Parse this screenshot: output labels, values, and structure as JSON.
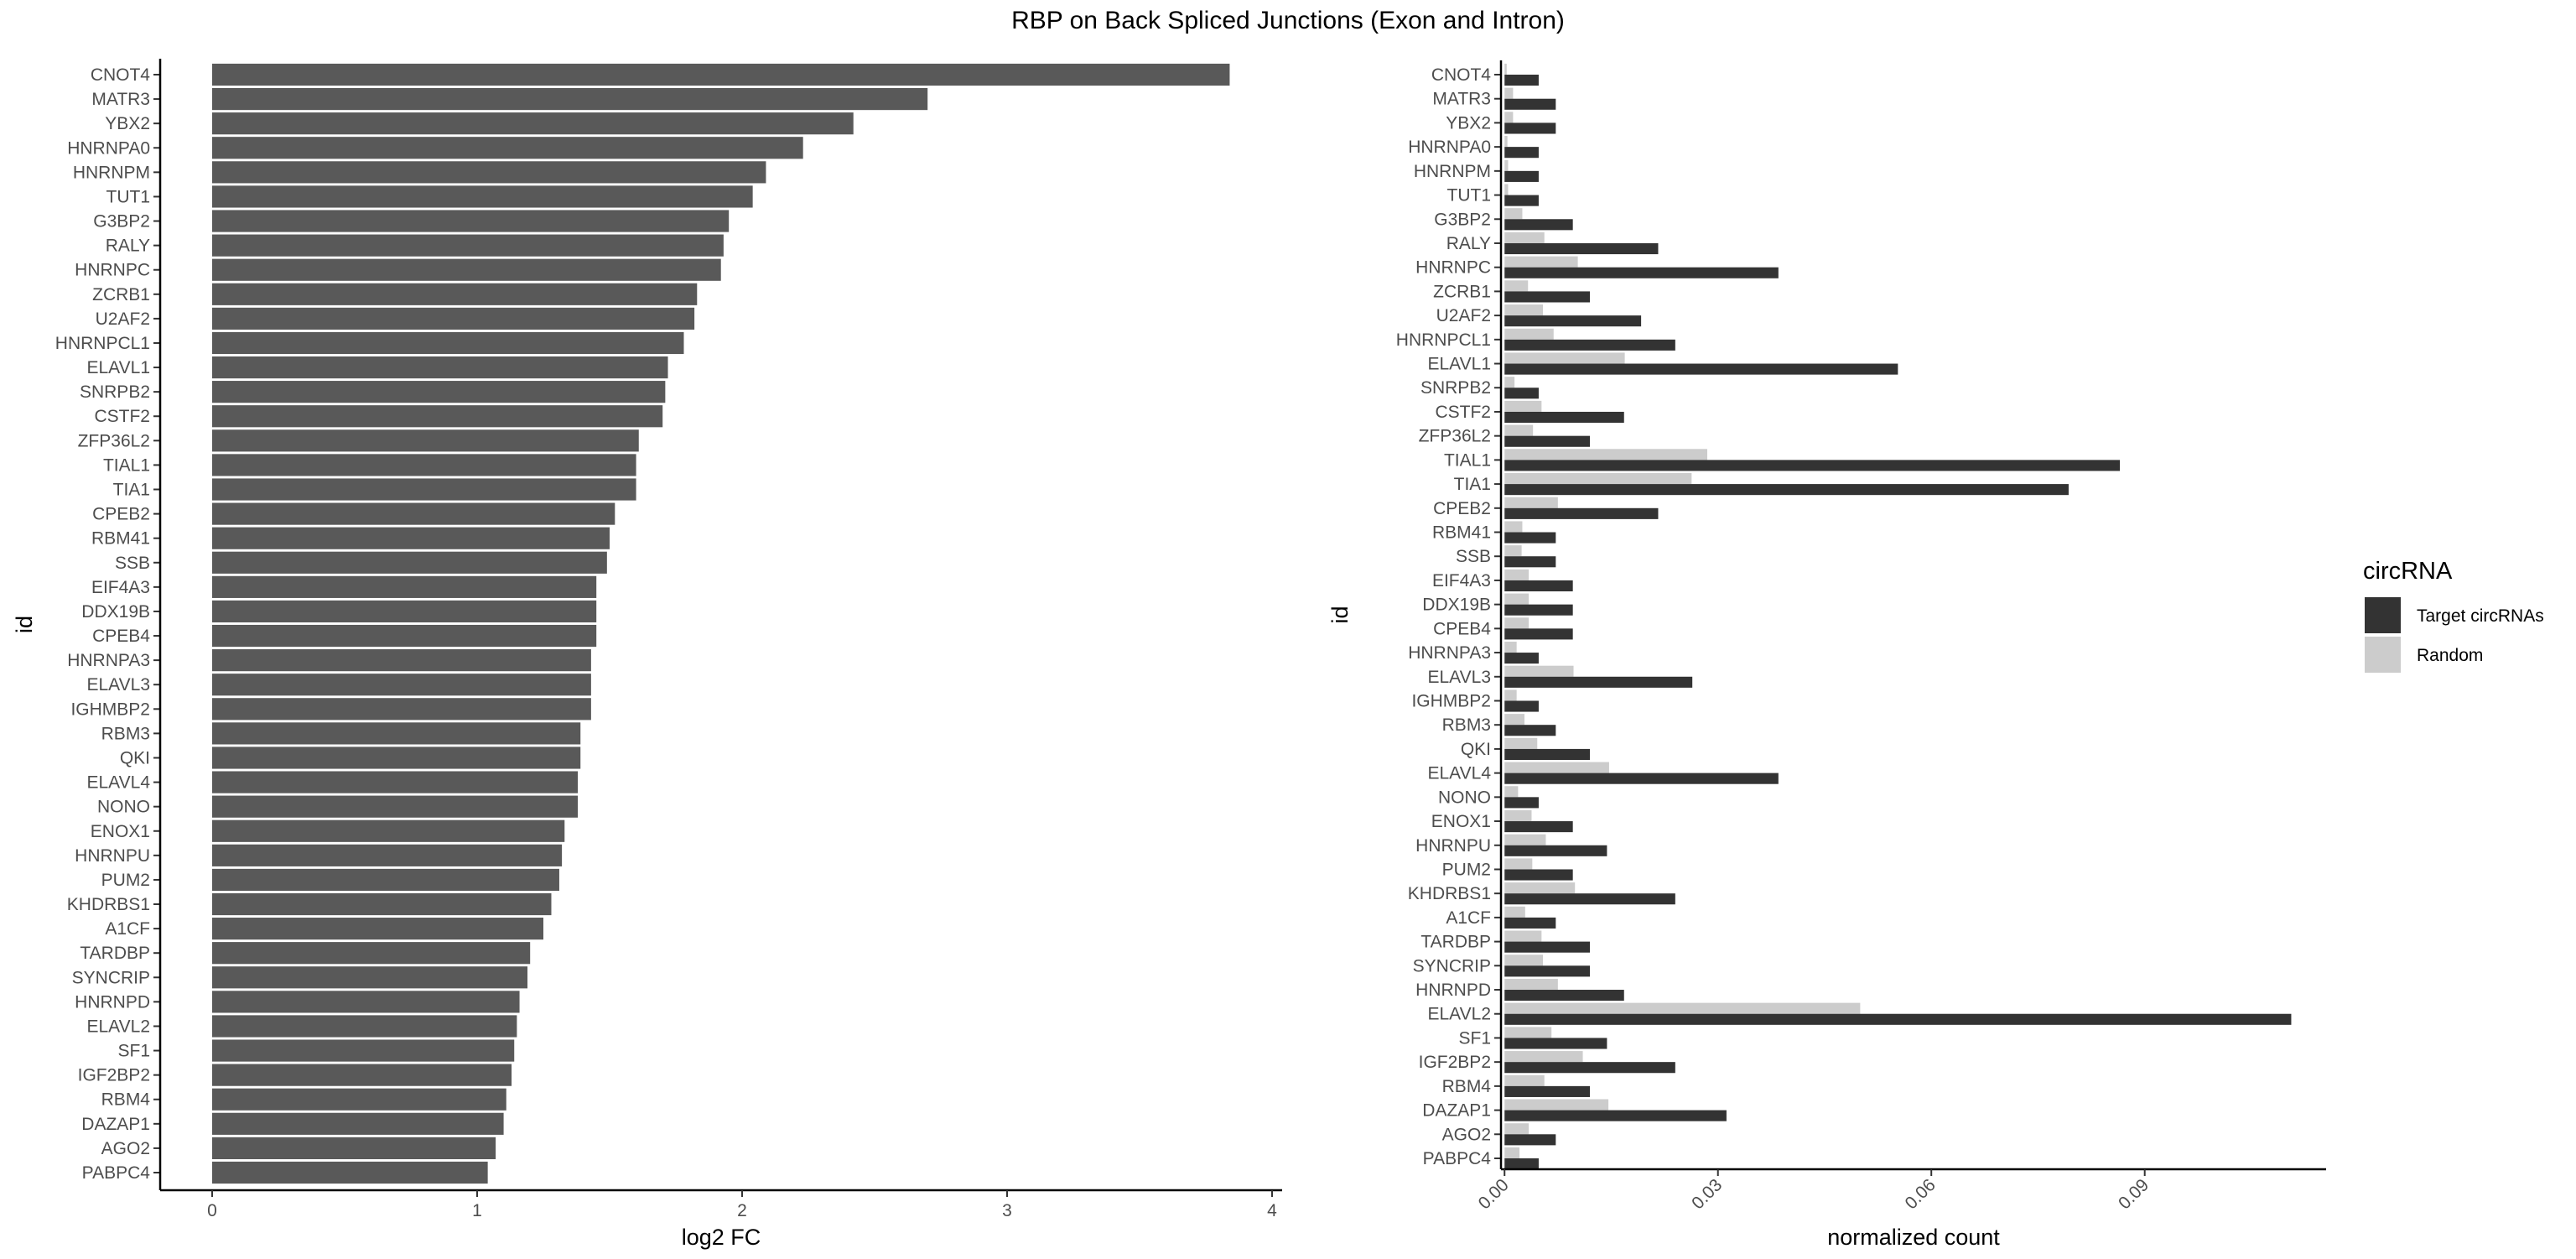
{
  "title": "RBP on Back Spliced Junctions (Exon and Intron)",
  "colors": {
    "bar_fc": "#595959",
    "target": "#333333",
    "random": "#cccccc",
    "axis": "#000000"
  },
  "chart_data": [
    {
      "type": "bar",
      "orientation": "horizontal",
      "xlabel": "log2 FC",
      "ylabel": "id",
      "xlim": [
        0,
        4
      ],
      "xticks": [
        0,
        1,
        2,
        3,
        4
      ],
      "grid": false,
      "categories": [
        "CNOT4",
        "MATR3",
        "YBX2",
        "HNRNPA0",
        "HNRNPM",
        "TUT1",
        "G3BP2",
        "RALY",
        "HNRNPC",
        "ZCRB1",
        "U2AF2",
        "HNRNPCL1",
        "ELAVL1",
        "SNRPB2",
        "CSTF2",
        "ZFP36L2",
        "TIAL1",
        "TIA1",
        "CPEB2",
        "RBM41",
        "SSB",
        "EIF4A3",
        "DDX19B",
        "CPEB4",
        "HNRNPA3",
        "ELAVL3",
        "IGHMBP2",
        "RBM3",
        "QKI",
        "ELAVL4",
        "NONO",
        "ENOX1",
        "HNRNPU",
        "PUM2",
        "KHDRBS1",
        "A1CF",
        "TARDBP",
        "SYNCRIP",
        "HNRNPD",
        "ELAVL2",
        "SF1",
        "IGF2BP2",
        "RBM4",
        "DAZAP1",
        "AGO2",
        "PABPC4"
      ],
      "values": [
        3.84,
        2.7,
        2.42,
        2.23,
        2.09,
        2.04,
        1.95,
        1.93,
        1.92,
        1.83,
        1.82,
        1.78,
        1.72,
        1.71,
        1.7,
        1.61,
        1.6,
        1.6,
        1.52,
        1.5,
        1.49,
        1.45,
        1.45,
        1.45,
        1.43,
        1.43,
        1.43,
        1.39,
        1.39,
        1.38,
        1.38,
        1.33,
        1.32,
        1.31,
        1.28,
        1.25,
        1.2,
        1.19,
        1.16,
        1.15,
        1.14,
        1.13,
        1.11,
        1.1,
        1.07,
        1.04
      ]
    },
    {
      "type": "bar",
      "orientation": "horizontal",
      "grouped": true,
      "xlabel": "normalized count",
      "ylabel": "id",
      "xlim": [
        -0.0005,
        0.1155
      ],
      "xticks": [
        0,
        0.03,
        0.06,
        0.09
      ],
      "xtick_labels": [
        "0.00",
        "0.03",
        "0.06",
        "0.09"
      ],
      "grid": false,
      "legend": {
        "title": "circRNA",
        "position": "right"
      },
      "categories": [
        "CNOT4",
        "MATR3",
        "YBX2",
        "HNRNPA0",
        "HNRNPM",
        "TUT1",
        "G3BP2",
        "RALY",
        "HNRNPC",
        "ZCRB1",
        "U2AF2",
        "HNRNPCL1",
        "ELAVL1",
        "SNRPB2",
        "CSTF2",
        "ZFP36L2",
        "TIAL1",
        "TIA1",
        "CPEB2",
        "RBM41",
        "SSB",
        "EIF4A3",
        "DDX19B",
        "CPEB4",
        "HNRNPA3",
        "ELAVL3",
        "IGHMBP2",
        "RBM3",
        "QKI",
        "ELAVL4",
        "NONO",
        "ENOX1",
        "HNRNPU",
        "PUM2",
        "KHDRBS1",
        "A1CF",
        "TARDBP",
        "SYNCRIP",
        "HNRNPD",
        "ELAVL2",
        "SF1",
        "IGF2BP2",
        "RBM4",
        "DAZAP1",
        "AGO2",
        "PABPC4"
      ],
      "series": [
        {
          "name": "Target circRNAs",
          "color": "#333333",
          "values": [
            0.0048,
            0.0072,
            0.0072,
            0.0048,
            0.0048,
            0.0048,
            0.0096,
            0.0216,
            0.0385,
            0.012,
            0.0192,
            0.024,
            0.0553,
            0.0048,
            0.0168,
            0.012,
            0.0865,
            0.0793,
            0.0216,
            0.0072,
            0.0072,
            0.0096,
            0.0096,
            0.0096,
            0.0048,
            0.0264,
            0.0048,
            0.0072,
            0.012,
            0.0385,
            0.0048,
            0.0096,
            0.0144,
            0.0096,
            0.024,
            0.0072,
            0.012,
            0.012,
            0.0168,
            0.1106,
            0.0144,
            0.024,
            0.012,
            0.0312,
            0.0072,
            0.0048
          ]
        },
        {
          "name": "Random",
          "color": "#cccccc",
          "values": [
            0.0003,
            0.0012,
            0.0012,
            0.0004,
            0.0005,
            0.0005,
            0.0025,
            0.0056,
            0.0103,
            0.0033,
            0.0054,
            0.0069,
            0.0169,
            0.0014,
            0.0052,
            0.004,
            0.0285,
            0.0263,
            0.0075,
            0.0025,
            0.0024,
            0.0034,
            0.0034,
            0.0034,
            0.0017,
            0.0097,
            0.0017,
            0.0028,
            0.0046,
            0.0147,
            0.0019,
            0.0038,
            0.0058,
            0.0039,
            0.0099,
            0.0029,
            0.0052,
            0.0054,
            0.0075,
            0.05,
            0.0066,
            0.011,
            0.0056,
            0.0146,
            0.0034,
            0.0021
          ]
        }
      ]
    }
  ]
}
